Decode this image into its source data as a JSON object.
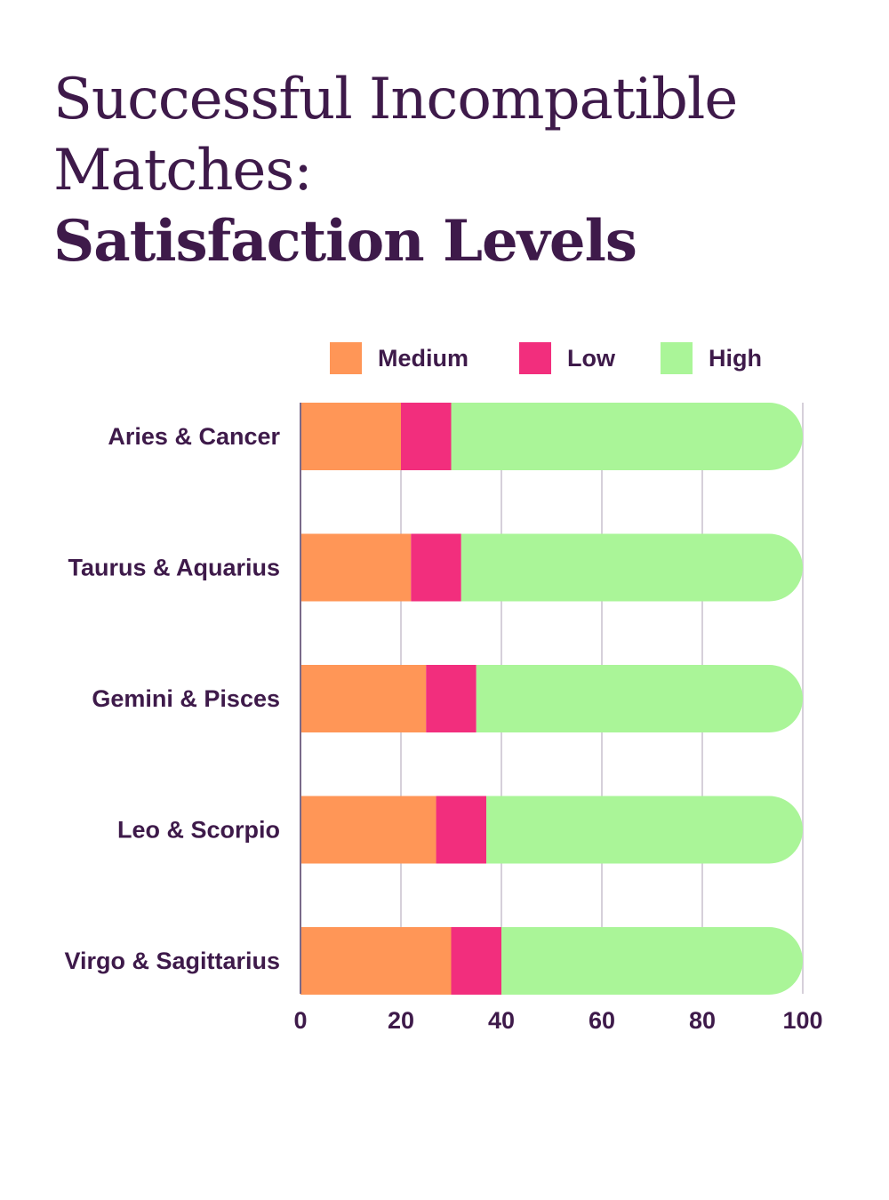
{
  "chart_data": {
    "type": "bar",
    "orientation": "horizontal",
    "stacked": true,
    "title_lines": [
      "Successful Incompatible",
      "Matches:",
      "Satisfaction Levels"
    ],
    "categories": [
      "Aries & Cancer",
      "Taurus & Aquarius",
      "Gemini & Pisces",
      "Leo & Scorpio",
      "Virgo & Sagittarius"
    ],
    "series": [
      {
        "name": "Medium",
        "color": "#ff9657",
        "values": [
          20,
          22,
          25,
          27,
          30
        ]
      },
      {
        "name": "Low",
        "color": "#f22e7d",
        "values": [
          10,
          10,
          10,
          10,
          10
        ]
      },
      {
        "name": "High",
        "color": "#aaf598",
        "values": [
          70,
          68,
          65,
          63,
          60
        ]
      }
    ],
    "xlim": [
      0,
      100
    ],
    "xticks": [
      "0",
      "20",
      "40",
      "60",
      "80",
      "100"
    ],
    "grid": true,
    "legend_position": "top"
  }
}
